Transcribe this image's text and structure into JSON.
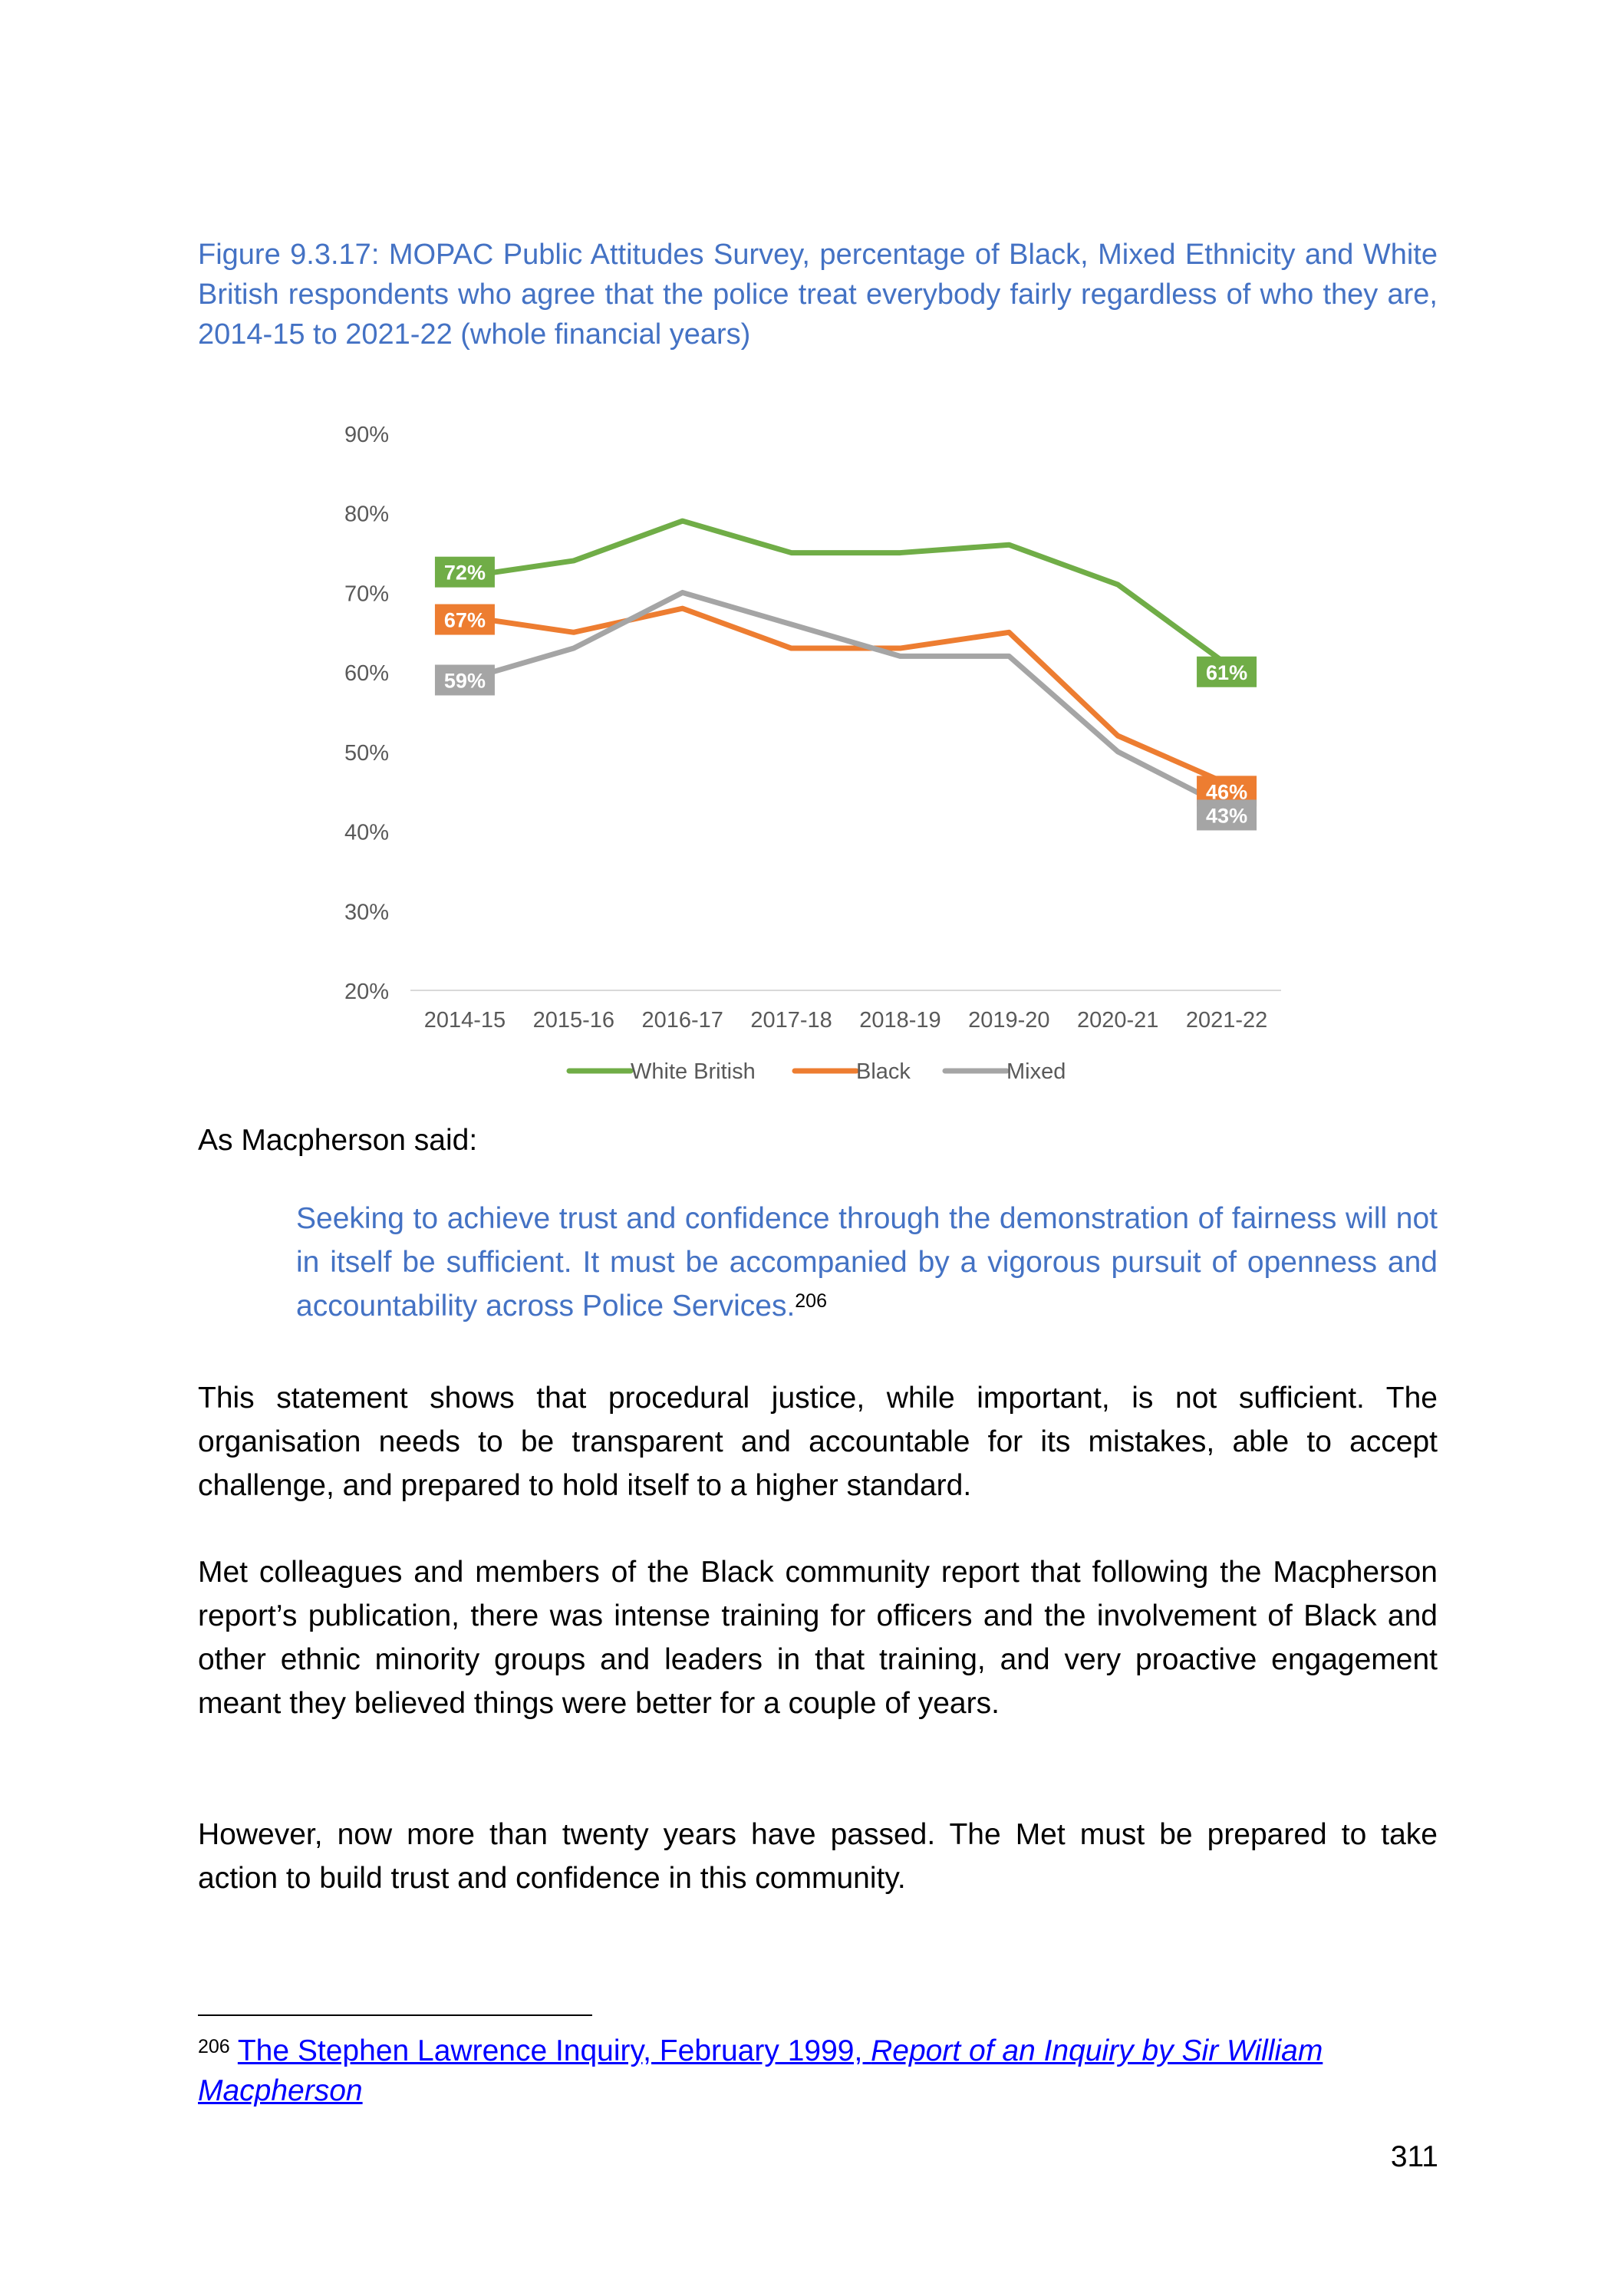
{
  "caption": "Figure 9.3.17: MOPAC Public Attitudes Survey, percentage of Black, Mixed Ethnicity and White British respondents who agree that the police treat everybody fairly regardless of who they are, 2014-15 to 2021-22 (whole financial years)",
  "chart_data": {
    "type": "line",
    "title": "",
    "xlabel": "",
    "ylabel": "",
    "categories": [
      "2014-15",
      "2015-16",
      "2016-17",
      "2017-18",
      "2018-19",
      "2019-20",
      "2020-21",
      "2021-22"
    ],
    "ylim": [
      20,
      90
    ],
    "yticks": [
      "20%",
      "30%",
      "40%",
      "50%",
      "60%",
      "70%",
      "80%",
      "90%"
    ],
    "grid": false,
    "legend": "bottom",
    "series": [
      {
        "name": "White British",
        "color": "#70AD47",
        "values": [
          72,
          74,
          79,
          75,
          75,
          76,
          71,
          61
        ],
        "labels": [
          "72%",
          "",
          "",
          "",
          "",
          "",
          "",
          "61%"
        ]
      },
      {
        "name": "Black",
        "color": "#ED7D31",
        "values": [
          67,
          65,
          68,
          63,
          63,
          65,
          52,
          46
        ],
        "labels": [
          "67%",
          "",
          "",
          "",
          "",
          "",
          "",
          "46%"
        ]
      },
      {
        "name": "Mixed",
        "color": "#A5A5A5",
        "values": [
          59,
          63,
          70,
          66,
          62,
          62,
          50,
          43
        ],
        "labels": [
          "59%",
          "",
          "",
          "",
          "",
          "",
          "",
          "43%"
        ]
      }
    ]
  },
  "intro": "As Macpherson said:",
  "quote": {
    "text": "Seeking to achieve trust and confidence through the demonstration of fairness will not in itself be sufficient. It must be accompanied by a vigorous pursuit of openness and accountability across Police Services.",
    "ref": "206"
  },
  "paragraphs": [
    "This statement shows that procedural justice, while important, is not sufficient. The organisation needs to be transparent and accountable for its mistakes, able to accept challenge, and prepared to hold itself to a higher standard.",
    "Met colleagues and members of the Black community report that following the Macpherson report’s publication, there was intense training for officers and the involvement of Black and other ethnic minority groups and leaders in that training, and very proactive engagement meant they believed things were better for a couple of years.",
    "However, now more than twenty years have passed. The Met must be prepared to take action to build trust and confidence in this community."
  ],
  "footnote": {
    "number": "206",
    "link_text": "The Stephen Lawrence Inquiry, February 1999, ",
    "link_italic": "Report of an Inquiry by Sir William Macpherson"
  },
  "page_number": "311"
}
